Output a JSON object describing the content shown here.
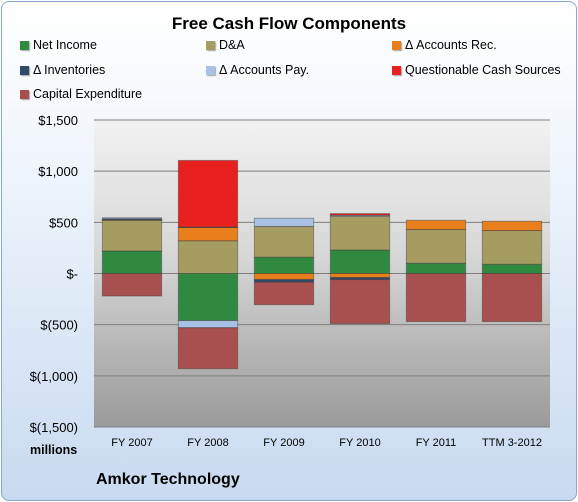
{
  "chart_data": {
    "type": "bar",
    "stacked": true,
    "title": "Free Cash Flow Components",
    "units_label": "millions",
    "company": "Amkor Technology",
    "categories": [
      "FY 2007",
      "FY 2008",
      "FY 2009",
      "FY 2010",
      "FY 2011",
      "TTM 3-2012"
    ],
    "ylim": [
      -1500,
      1500
    ],
    "yticks": [
      1500,
      1000,
      500,
      0,
      -500,
      -1000,
      -1500
    ],
    "ytick_labels": [
      "$1,500",
      "$1,000",
      "$500",
      "$-",
      "$(500)",
      "$(1,000)",
      "$(1,500)"
    ],
    "grid": true,
    "legend_position": "top",
    "series": [
      {
        "name": "Net Income",
        "color": "#2f8a3f",
        "values": [
          220,
          -460,
          160,
          230,
          100,
          90
        ]
      },
      {
        "name": "D&A",
        "color": "#a59c62",
        "values": [
          300,
          320,
          300,
          330,
          330,
          330
        ]
      },
      {
        "name": "Δ Accounts Rec.",
        "color": "#e87e1c",
        "values": [
          5,
          130,
          -60,
          -40,
          90,
          90
        ]
      },
      {
        "name": "Δ Inventories",
        "color": "#2e4a6b",
        "values": [
          10,
          5,
          -25,
          -20,
          0,
          0
        ]
      },
      {
        "name": "Δ Accounts Pay.",
        "color": "#a9c2e3",
        "values": [
          10,
          -70,
          80,
          10,
          0,
          0
        ]
      },
      {
        "name": "Questionable Cash Sources",
        "color": "#e82020",
        "values": [
          0,
          650,
          0,
          15,
          0,
          0
        ]
      },
      {
        "name": "Capital Expenditure",
        "color": "#a84f50",
        "values": [
          -220,
          -400,
          -220,
          -430,
          -470,
          -470
        ]
      }
    ]
  }
}
